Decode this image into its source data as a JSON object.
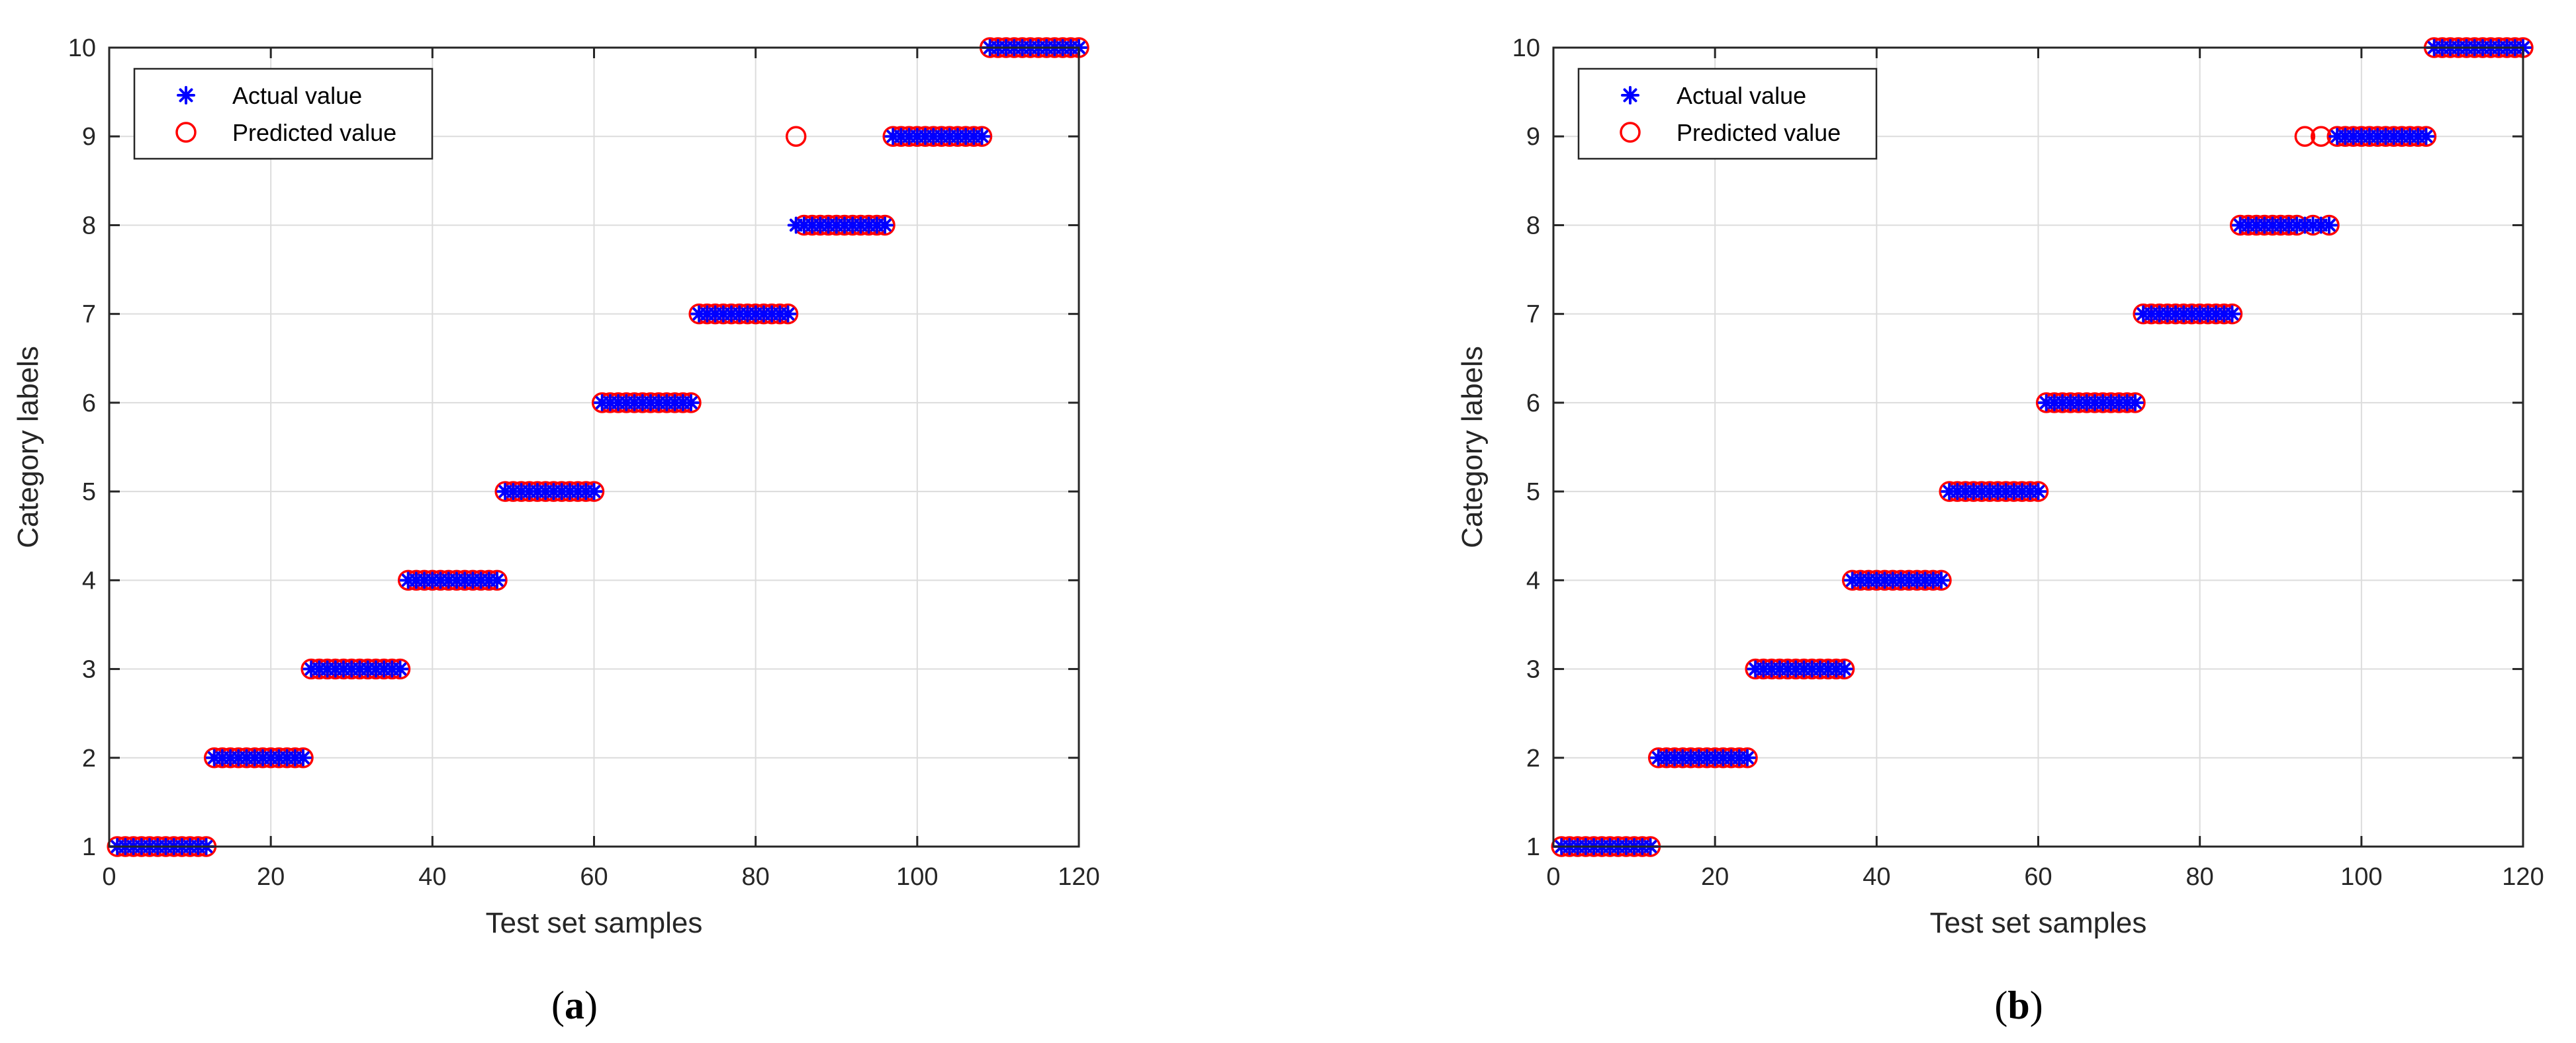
{
  "chart_data": [
    {
      "type": "scatter",
      "panel": "(a)",
      "panel_letter": "a",
      "xlabel": "Test set samples",
      "ylabel": "Category labels",
      "xlim": [
        0,
        120
      ],
      "ylim": [
        1,
        10
      ],
      "xticks": [
        0,
        20,
        40,
        60,
        80,
        100,
        120
      ],
      "yticks": [
        1,
        2,
        3,
        4,
        5,
        6,
        7,
        8,
        9,
        10
      ],
      "grid": true,
      "legend_position": "top-left",
      "series": [
        {
          "name": "Actual value",
          "marker": "asterisk",
          "color": "#0000ff",
          "x": [
            1,
            2,
            3,
            4,
            5,
            6,
            7,
            8,
            9,
            10,
            11,
            12,
            13,
            14,
            15,
            16,
            17,
            18,
            19,
            20,
            21,
            22,
            23,
            24,
            25,
            26,
            27,
            28,
            29,
            30,
            31,
            32,
            33,
            34,
            35,
            36,
            37,
            38,
            39,
            40,
            41,
            42,
            43,
            44,
            45,
            46,
            47,
            48,
            49,
            50,
            51,
            52,
            53,
            54,
            55,
            56,
            57,
            58,
            59,
            60,
            61,
            62,
            63,
            64,
            65,
            66,
            67,
            68,
            69,
            70,
            71,
            72,
            73,
            74,
            75,
            76,
            77,
            78,
            79,
            80,
            81,
            82,
            83,
            84,
            85,
            86,
            87,
            88,
            89,
            90,
            91,
            92,
            93,
            94,
            95,
            96,
            97,
            98,
            99,
            100,
            101,
            102,
            103,
            104,
            105,
            106,
            107,
            108,
            109,
            110,
            111,
            112,
            113,
            114,
            115,
            116,
            117,
            118,
            119,
            120
          ],
          "y": [
            1,
            1,
            1,
            1,
            1,
            1,
            1,
            1,
            1,
            1,
            1,
            1,
            2,
            2,
            2,
            2,
            2,
            2,
            2,
            2,
            2,
            2,
            2,
            2,
            3,
            3,
            3,
            3,
            3,
            3,
            3,
            3,
            3,
            3,
            3,
            3,
            4,
            4,
            4,
            4,
            4,
            4,
            4,
            4,
            4,
            4,
            4,
            4,
            5,
            5,
            5,
            5,
            5,
            5,
            5,
            5,
            5,
            5,
            5,
            5,
            6,
            6,
            6,
            6,
            6,
            6,
            6,
            6,
            6,
            6,
            6,
            6,
            7,
            7,
            7,
            7,
            7,
            7,
            7,
            7,
            7,
            7,
            7,
            7,
            8,
            8,
            8,
            8,
            8,
            8,
            8,
            8,
            8,
            8,
            8,
            8,
            9,
            9,
            9,
            9,
            9,
            9,
            9,
            9,
            9,
            9,
            9,
            9,
            10,
            10,
            10,
            10,
            10,
            10,
            10,
            10,
            10,
            10,
            10,
            10
          ]
        },
        {
          "name": "Predicted value",
          "marker": "circle",
          "color": "#ff0000",
          "x": [
            1,
            2,
            3,
            4,
            5,
            6,
            7,
            8,
            9,
            10,
            11,
            12,
            13,
            14,
            15,
            16,
            17,
            18,
            19,
            20,
            21,
            22,
            23,
            24,
            25,
            26,
            27,
            28,
            29,
            30,
            31,
            32,
            33,
            34,
            35,
            36,
            37,
            38,
            39,
            40,
            41,
            42,
            43,
            44,
            45,
            46,
            47,
            48,
            49,
            50,
            51,
            52,
            53,
            54,
            55,
            56,
            57,
            58,
            59,
            60,
            61,
            62,
            63,
            64,
            65,
            66,
            67,
            68,
            69,
            70,
            71,
            72,
            73,
            74,
            75,
            76,
            77,
            78,
            79,
            80,
            81,
            82,
            83,
            84,
            85,
            86,
            87,
            88,
            89,
            90,
            91,
            92,
            93,
            94,
            95,
            96,
            97,
            98,
            99,
            100,
            101,
            102,
            103,
            104,
            105,
            106,
            107,
            108,
            109,
            110,
            111,
            112,
            113,
            114,
            115,
            116,
            117,
            118,
            119,
            120
          ],
          "y": [
            1,
            1,
            1,
            1,
            1,
            1,
            1,
            1,
            1,
            1,
            1,
            1,
            2,
            2,
            2,
            2,
            2,
            2,
            2,
            2,
            2,
            2,
            2,
            2,
            3,
            3,
            3,
            3,
            3,
            3,
            3,
            3,
            3,
            3,
            3,
            3,
            4,
            4,
            4,
            4,
            4,
            4,
            4,
            4,
            4,
            4,
            4,
            4,
            5,
            5,
            5,
            5,
            5,
            5,
            5,
            5,
            5,
            5,
            5,
            5,
            6,
            6,
            6,
            6,
            6,
            6,
            6,
            6,
            6,
            6,
            6,
            6,
            7,
            7,
            7,
            7,
            7,
            7,
            7,
            7,
            7,
            7,
            7,
            7,
            9,
            8,
            8,
            8,
            8,
            8,
            8,
            8,
            8,
            8,
            8,
            8,
            9,
            9,
            9,
            9,
            9,
            9,
            9,
            9,
            9,
            9,
            9,
            9,
            10,
            10,
            10,
            10,
            10,
            10,
            10,
            10,
            10,
            10,
            10,
            10
          ]
        }
      ]
    },
    {
      "type": "scatter",
      "panel": "(b)",
      "panel_letter": "b",
      "xlabel": "Test set samples",
      "ylabel": "Category labels",
      "xlim": [
        0,
        120
      ],
      "ylim": [
        1,
        10
      ],
      "xticks": [
        0,
        20,
        40,
        60,
        80,
        100,
        120
      ],
      "yticks": [
        1,
        2,
        3,
        4,
        5,
        6,
        7,
        8,
        9,
        10
      ],
      "grid": true,
      "legend_position": "top-left",
      "series": [
        {
          "name": "Actual value",
          "marker": "asterisk",
          "color": "#0000ff",
          "x": [
            1,
            2,
            3,
            4,
            5,
            6,
            7,
            8,
            9,
            10,
            11,
            12,
            13,
            14,
            15,
            16,
            17,
            18,
            19,
            20,
            21,
            22,
            23,
            24,
            25,
            26,
            27,
            28,
            29,
            30,
            31,
            32,
            33,
            34,
            35,
            36,
            37,
            38,
            39,
            40,
            41,
            42,
            43,
            44,
            45,
            46,
            47,
            48,
            49,
            50,
            51,
            52,
            53,
            54,
            55,
            56,
            57,
            58,
            59,
            60,
            61,
            62,
            63,
            64,
            65,
            66,
            67,
            68,
            69,
            70,
            71,
            72,
            73,
            74,
            75,
            76,
            77,
            78,
            79,
            80,
            81,
            82,
            83,
            84,
            85,
            86,
            87,
            88,
            89,
            90,
            91,
            92,
            93,
            94,
            95,
            96,
            97,
            98,
            99,
            100,
            101,
            102,
            103,
            104,
            105,
            106,
            107,
            108,
            109,
            110,
            111,
            112,
            113,
            114,
            115,
            116,
            117,
            118,
            119,
            120
          ],
          "y": [
            1,
            1,
            1,
            1,
            1,
            1,
            1,
            1,
            1,
            1,
            1,
            1,
            2,
            2,
            2,
            2,
            2,
            2,
            2,
            2,
            2,
            2,
            2,
            2,
            3,
            3,
            3,
            3,
            3,
            3,
            3,
            3,
            3,
            3,
            3,
            3,
            4,
            4,
            4,
            4,
            4,
            4,
            4,
            4,
            4,
            4,
            4,
            4,
            5,
            5,
            5,
            5,
            5,
            5,
            5,
            5,
            5,
            5,
            5,
            5,
            6,
            6,
            6,
            6,
            6,
            6,
            6,
            6,
            6,
            6,
            6,
            6,
            7,
            7,
            7,
            7,
            7,
            7,
            7,
            7,
            7,
            7,
            7,
            7,
            8,
            8,
            8,
            8,
            8,
            8,
            8,
            8,
            8,
            8,
            8,
            8,
            9,
            9,
            9,
            9,
            9,
            9,
            9,
            9,
            9,
            9,
            9,
            9,
            10,
            10,
            10,
            10,
            10,
            10,
            10,
            10,
            10,
            10,
            10,
            10
          ]
        },
        {
          "name": "Predicted value",
          "marker": "circle",
          "color": "#ff0000",
          "x": [
            1,
            2,
            3,
            4,
            5,
            6,
            7,
            8,
            9,
            10,
            11,
            12,
            13,
            14,
            15,
            16,
            17,
            18,
            19,
            20,
            21,
            22,
            23,
            24,
            25,
            26,
            27,
            28,
            29,
            30,
            31,
            32,
            33,
            34,
            35,
            36,
            37,
            38,
            39,
            40,
            41,
            42,
            43,
            44,
            45,
            46,
            47,
            48,
            49,
            50,
            51,
            52,
            53,
            54,
            55,
            56,
            57,
            58,
            59,
            60,
            61,
            62,
            63,
            64,
            65,
            66,
            67,
            68,
            69,
            70,
            71,
            72,
            73,
            74,
            75,
            76,
            77,
            78,
            79,
            80,
            81,
            82,
            83,
            84,
            85,
            86,
            87,
            88,
            89,
            90,
            91,
            92,
            93,
            94,
            95,
            96,
            97,
            98,
            99,
            100,
            101,
            102,
            103,
            104,
            105,
            106,
            107,
            108,
            109,
            110,
            111,
            112,
            113,
            114,
            115,
            116,
            117,
            118,
            119,
            120
          ],
          "y": [
            1,
            1,
            1,
            1,
            1,
            1,
            1,
            1,
            1,
            1,
            1,
            1,
            2,
            2,
            2,
            2,
            2,
            2,
            2,
            2,
            2,
            2,
            2,
            2,
            3,
            3,
            3,
            3,
            3,
            3,
            3,
            3,
            3,
            3,
            3,
            3,
            4,
            4,
            4,
            4,
            4,
            4,
            4,
            4,
            4,
            4,
            4,
            4,
            5,
            5,
            5,
            5,
            5,
            5,
            5,
            5,
            5,
            5,
            5,
            5,
            6,
            6,
            6,
            6,
            6,
            6,
            6,
            6,
            6,
            6,
            6,
            6,
            7,
            7,
            7,
            7,
            7,
            7,
            7,
            7,
            7,
            7,
            7,
            7,
            8,
            8,
            8,
            8,
            8,
            8,
            8,
            8,
            9,
            8,
            9,
            8,
            9,
            9,
            9,
            9,
            9,
            9,
            9,
            9,
            9,
            9,
            9,
            9,
            10,
            10,
            10,
            10,
            10,
            10,
            10,
            10,
            10,
            10,
            10,
            10
          ]
        }
      ]
    }
  ]
}
